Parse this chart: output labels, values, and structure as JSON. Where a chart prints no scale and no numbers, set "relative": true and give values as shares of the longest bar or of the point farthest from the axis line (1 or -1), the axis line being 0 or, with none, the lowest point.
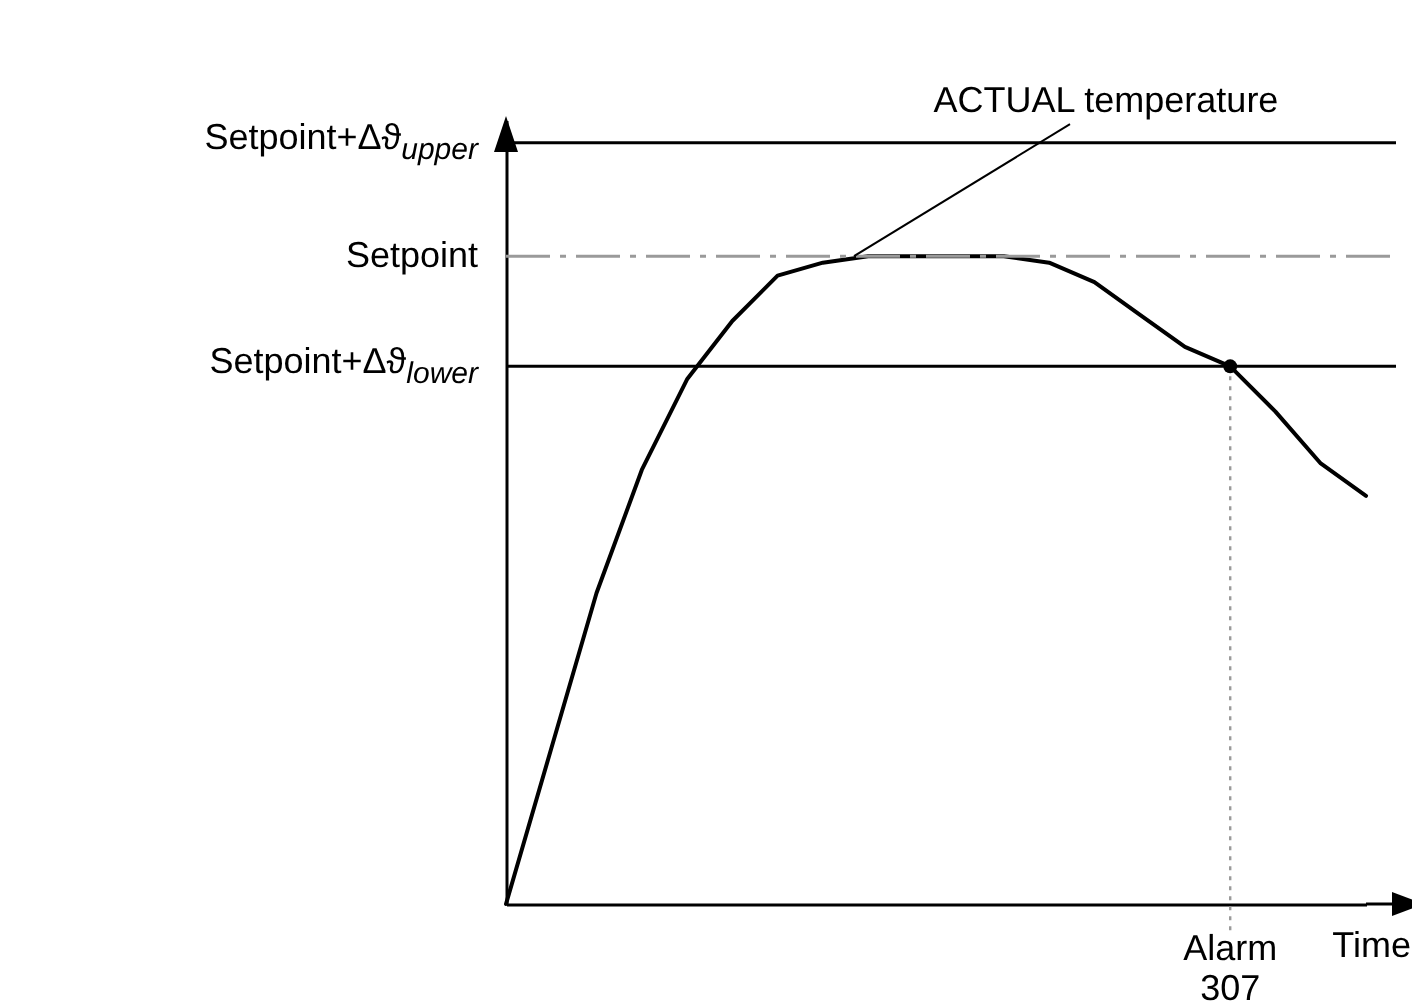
{
  "chart_data": {
    "type": "line",
    "relative": true,
    "xlabel": "Time",
    "marker": "none",
    "line_style": "solid",
    "categories": [
      null,
      null,
      null,
      null,
      null,
      null,
      null,
      null,
      null,
      null,
      null,
      null,
      null,
      null,
      null,
      null,
      null,
      null,
      null,
      null
    ],
    "series": [
      {
        "color": "#000000",
        "values": [
          0,
          0.24,
          0.48,
          0.67,
          0.81,
          0.9,
          0.97,
          0.99,
          1.0,
          1.0,
          1.0,
          1.0,
          0.99,
          0.96,
          0.91,
          0.86,
          0.83,
          0.76,
          0.68,
          0.63
        ]
      }
    ],
    "ref_lines": [
      {
        "axis": "y",
        "value": 1.175,
        "label": "Setpoint+Δϑ$_{upper}$",
        "color": "#000000",
        "line_style": "solid"
      },
      {
        "axis": "y",
        "value": 1.0,
        "label": "Setpoint",
        "color": "#9a9a9a",
        "line_style": "dashed"
      },
      {
        "axis": "y",
        "value": 0.83,
        "label": "Setpoint+Δϑ$_{lower}$",
        "color": "#000000",
        "line_style": "solid"
      }
    ],
    "annotations": [
      "ACTUAL temperature",
      "Alarm\n307"
    ]
  }
}
